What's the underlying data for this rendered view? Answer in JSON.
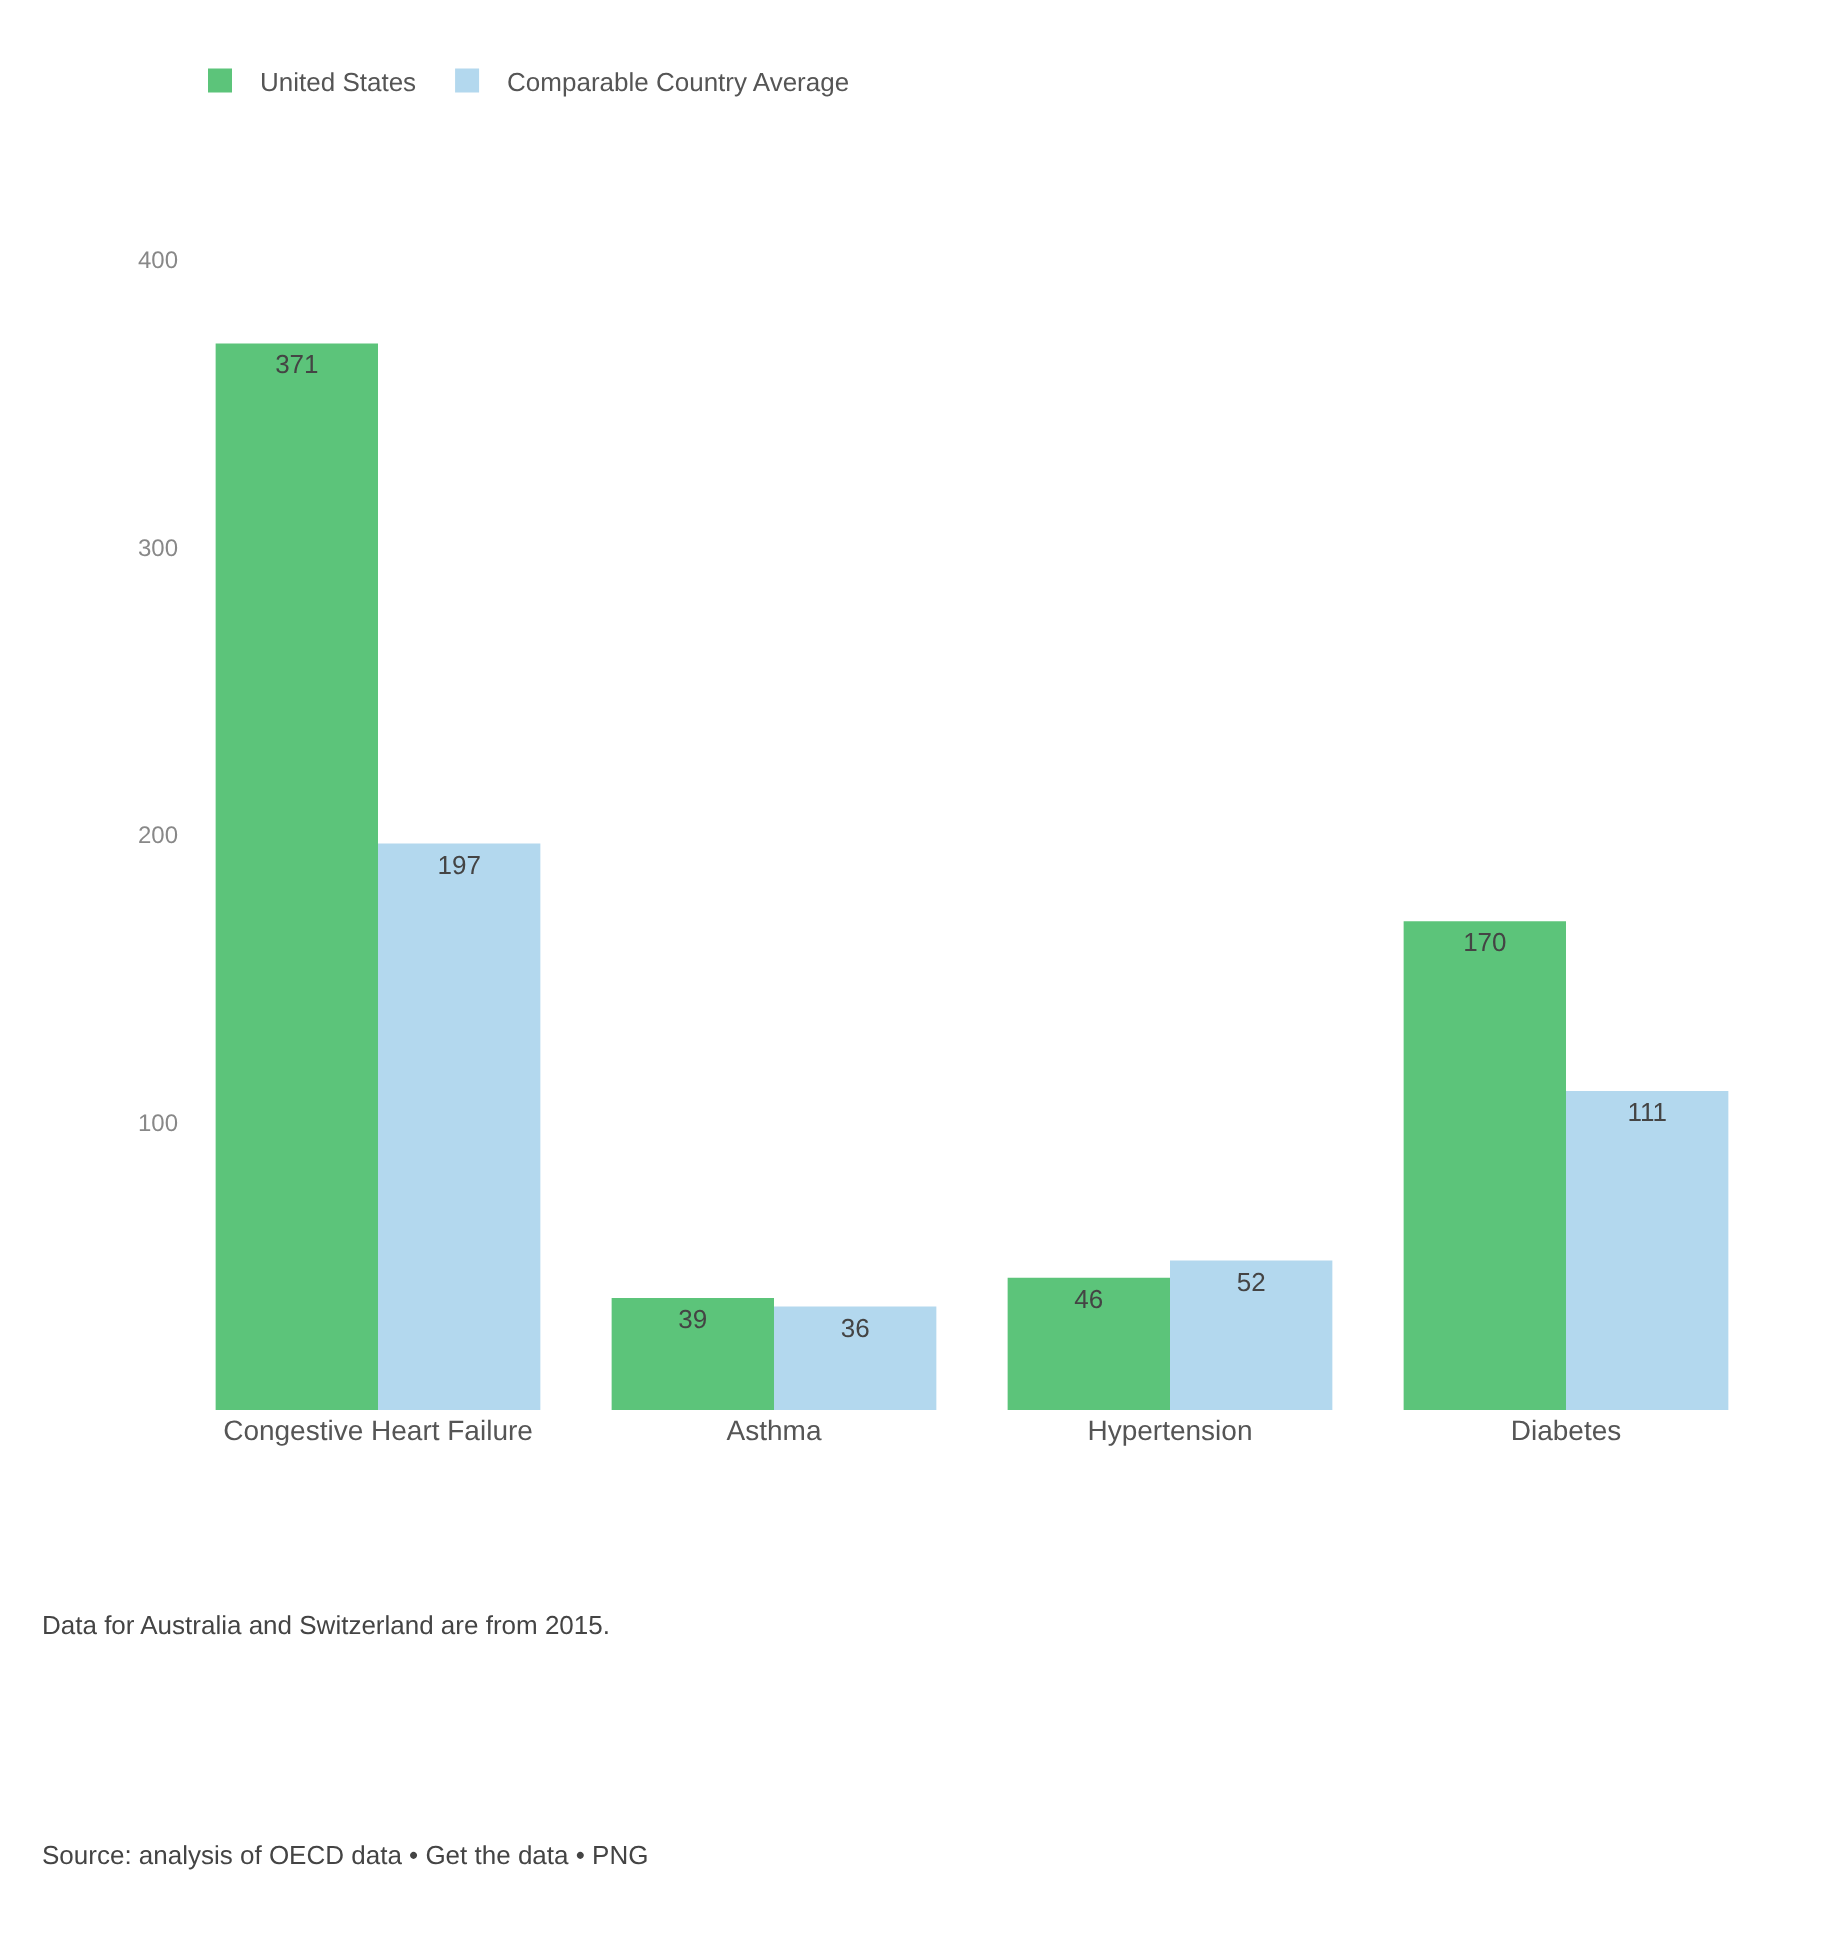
{
  "chart_data": {
    "type": "bar",
    "categories": [
      "Congestive Heart Failure",
      "Asthma",
      "Hypertension",
      "Diabetes"
    ],
    "series": [
      {
        "name": "United States",
        "color": "#5cc47a",
        "values": [
          371,
          39,
          46,
          170
        ]
      },
      {
        "name": "Comparable Country Average",
        "color": "#b3d8ee",
        "values": [
          197,
          36,
          52,
          111
        ]
      }
    ],
    "ylim": [
      0,
      400
    ],
    "yticks": [
      100,
      200,
      300,
      400
    ],
    "data_labels": true,
    "grid": false,
    "legend": "top left",
    "annotations": [
      "Data for Australia and Switzerland are from 2015.",
      "Source: analysis of OECD data • Get the data • PNG"
    ]
  }
}
